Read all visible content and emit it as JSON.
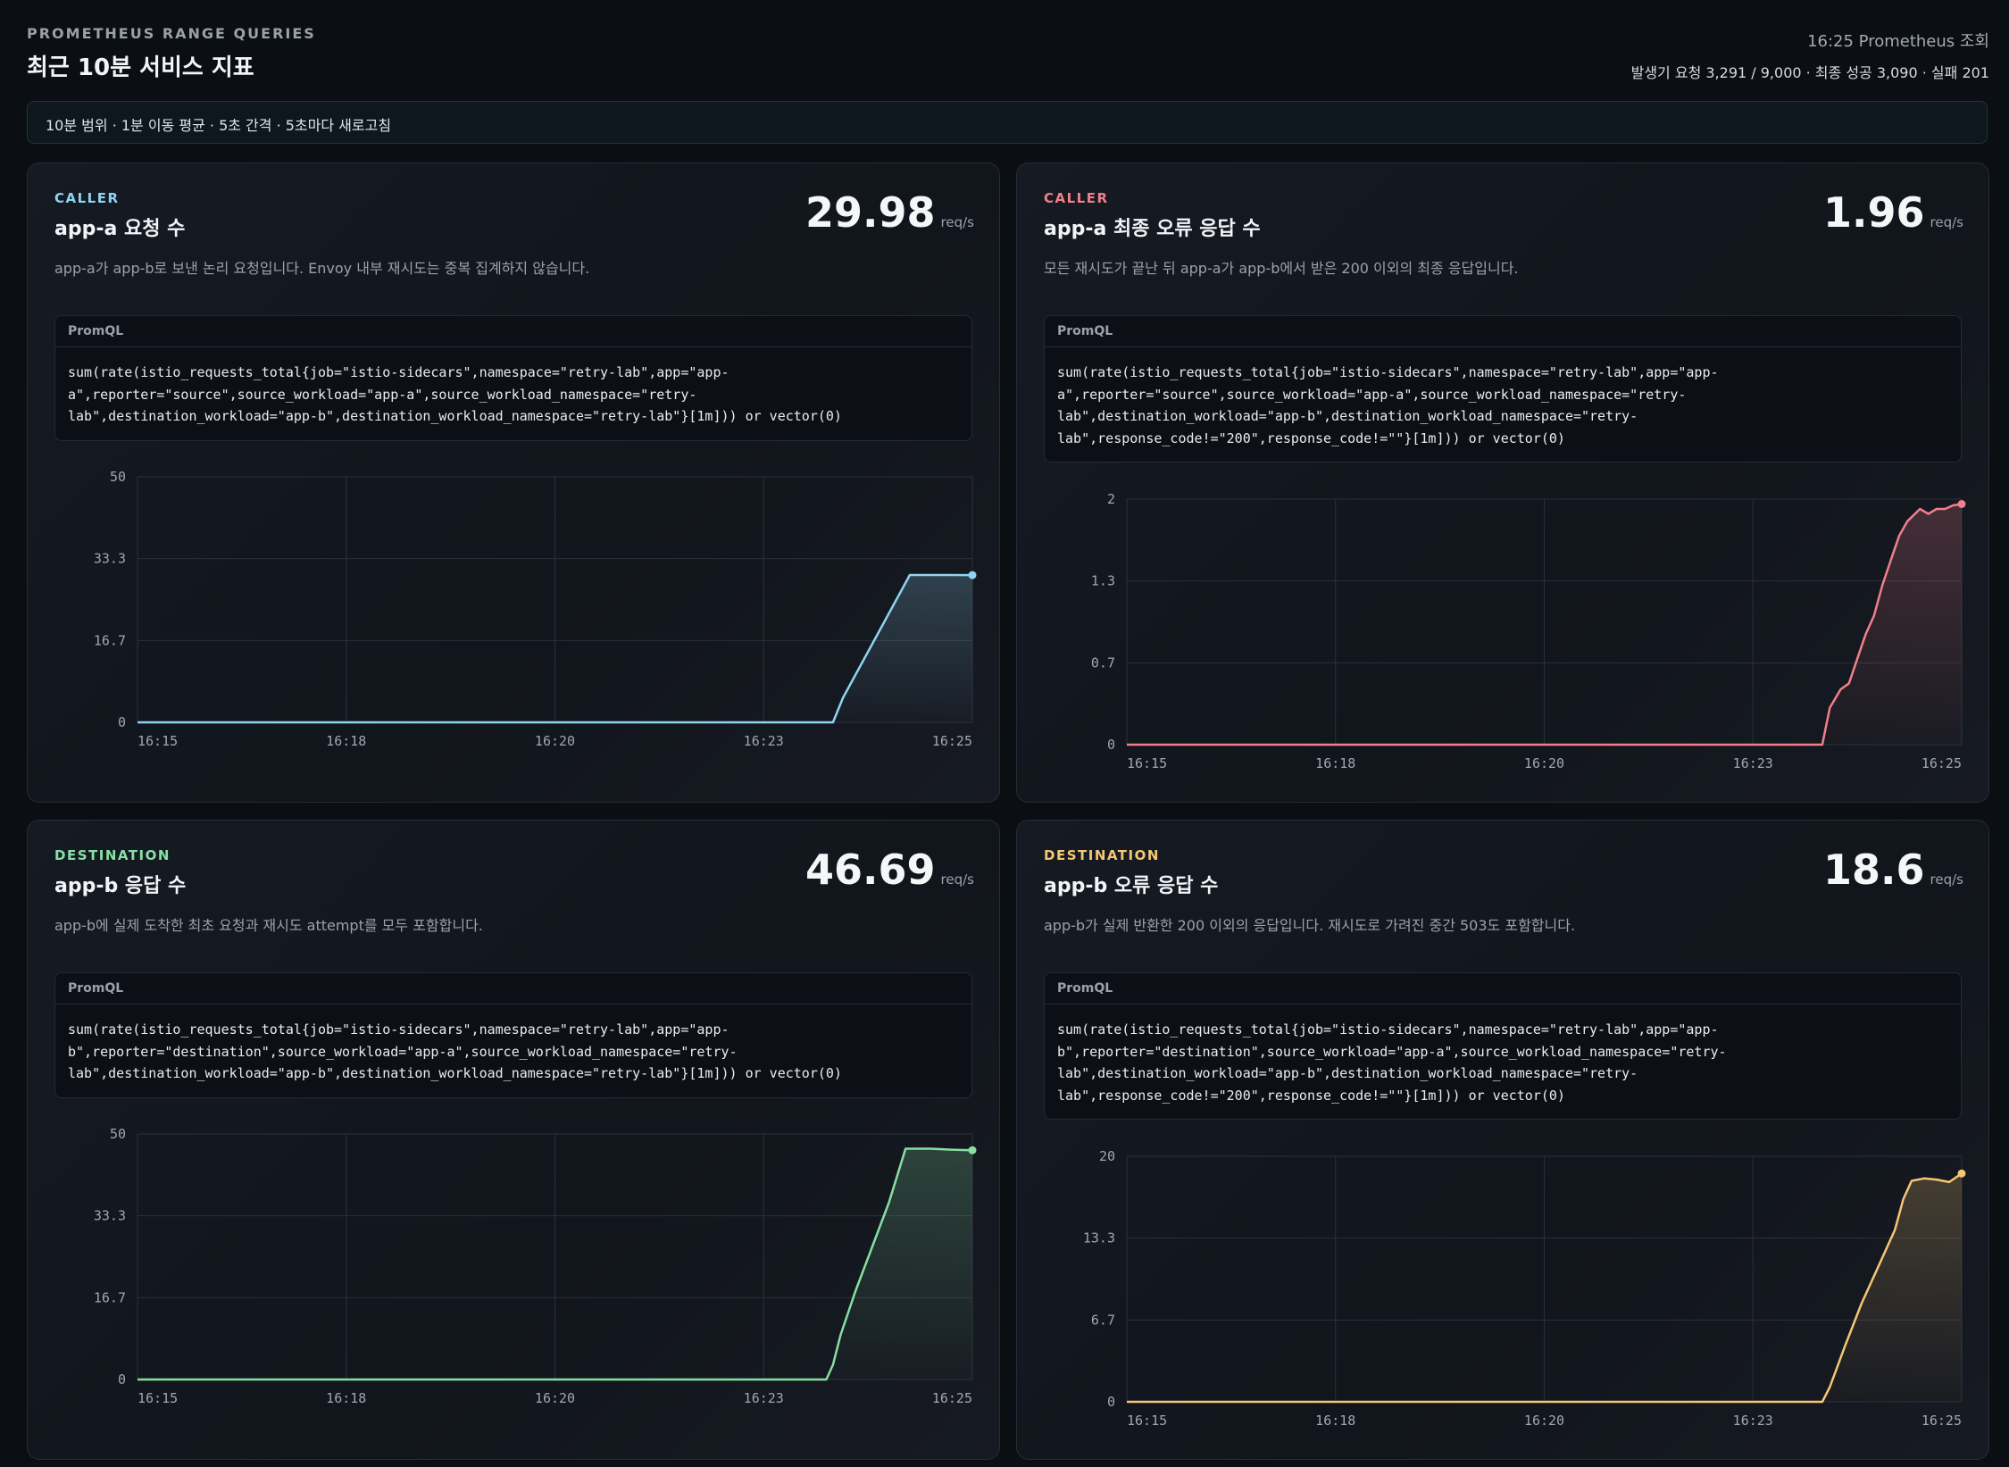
{
  "header": {
    "eyebrow": "PROMETHEUS RANGE QUERIES",
    "title": "최근 10분 서비스 지표",
    "query_time": "16:25 Prometheus 조회",
    "stats": "발생기 요청 3,291 / 9,000 · 최종 성공 3,090 · 실패 201"
  },
  "banner": {
    "text": "10분 범위 · 1분 이동 평균 · 5초 간격 · 5초마다 새로고침"
  },
  "colors": {
    "caller": "#8fd4f0",
    "caller_error": "#f27f8c",
    "destination": "#86e0a3",
    "destination_error": "#f5c673"
  },
  "panels": [
    {
      "tag": "CALLER",
      "title": "app-a 요청 수",
      "description": "app-a가 app-b로 보낸 논리 요청입니다. Envoy 내부 재시도는 중복 집계하지 않습니다.",
      "value": "29.98",
      "unit": "req/s",
      "promql_label": "PromQL",
      "promql": "sum(rate(istio_requests_total{job=\"istio-sidecars\",namespace=\"retry-lab\",app=\"app-\na\",reporter=\"source\",source_workload=\"app-a\",source_workload_namespace=\"retry-\nlab\",destination_workload=\"app-b\",destination_workload_namespace=\"retry-lab\"}[1m])) or vector(0)",
      "color": "#8fd4f0"
    },
    {
      "tag": "CALLER",
      "title": "app-a 최종 오류 응답 수",
      "description": "모든 재시도가 끝난 뒤 app-a가 app-b에서 받은 200 이외의 최종 응답입니다.",
      "value": "1.96",
      "unit": "req/s",
      "promql_label": "PromQL",
      "promql": "sum(rate(istio_requests_total{job=\"istio-sidecars\",namespace=\"retry-lab\",app=\"app-\na\",reporter=\"source\",source_workload=\"app-a\",source_workload_namespace=\"retry-\nlab\",destination_workload=\"app-b\",destination_workload_namespace=\"retry-\nlab\",response_code!=\"200\",response_code!=\"\"}[1m])) or vector(0)",
      "color": "#f27f8c"
    },
    {
      "tag": "DESTINATION",
      "title": "app-b 응답 수",
      "description": "app-b에 실제 도착한 최초 요청과 재시도 attempt를 모두 포함합니다.",
      "value": "46.69",
      "unit": "req/s",
      "promql_label": "PromQL",
      "promql": "sum(rate(istio_requests_total{job=\"istio-sidecars\",namespace=\"retry-lab\",app=\"app-\nb\",reporter=\"destination\",source_workload=\"app-a\",source_workload_namespace=\"retry-\nlab\",destination_workload=\"app-b\",destination_workload_namespace=\"retry-lab\"}[1m])) or vector(0)",
      "color": "#86e0a3"
    },
    {
      "tag": "DESTINATION",
      "title": "app-b 오류 응답 수",
      "description": "app-b가 실제 반환한 200 이외의 응답입니다. 재시도로 가려진 중간 503도 포함합니다.",
      "value": "18.6",
      "unit": "req/s",
      "promql_label": "PromQL",
      "promql": "sum(rate(istio_requests_total{job=\"istio-sidecars\",namespace=\"retry-lab\",app=\"app-\nb\",reporter=\"destination\",source_workload=\"app-a\",source_workload_namespace=\"retry-\nlab\",destination_workload=\"app-b\",destination_workload_namespace=\"retry-\nlab\",response_code!=\"200\",response_code!=\"\"}[1m])) or vector(0)",
      "color": "#f5c673"
    }
  ],
  "chart_data": [
    {
      "type": "area",
      "x_ticks": [
        "16:15",
        "16:18",
        "16:20",
        "16:23",
        "16:25"
      ],
      "y_ticks": [
        "0",
        "16.7",
        "33.3",
        "50"
      ],
      "ylim": [
        0,
        50
      ],
      "x": [
        0,
        8.33,
        8.45,
        9.25,
        9.5,
        9.75,
        10
      ],
      "y": [
        0,
        0,
        5,
        30,
        30,
        30,
        29.98
      ],
      "grid": true
    },
    {
      "type": "area",
      "x_ticks": [
        "16:15",
        "16:18",
        "16:20",
        "16:23",
        "16:25"
      ],
      "y_ticks": [
        "0",
        "0.7",
        "1.3",
        "2"
      ],
      "ylim": [
        0,
        2
      ],
      "x": [
        0,
        8.33,
        8.42,
        8.55,
        8.65,
        8.75,
        8.85,
        8.95,
        9.05,
        9.15,
        9.25,
        9.35,
        9.5,
        9.6,
        9.7,
        9.8,
        9.9,
        10
      ],
      "y": [
        0,
        0,
        0.3,
        0.45,
        0.5,
        0.7,
        0.9,
        1.05,
        1.3,
        1.5,
        1.7,
        1.82,
        1.92,
        1.88,
        1.92,
        1.92,
        1.95,
        1.96
      ],
      "grid": true
    },
    {
      "type": "area",
      "x_ticks": [
        "16:15",
        "16:18",
        "16:20",
        "16:23",
        "16:25"
      ],
      "y_ticks": [
        "0",
        "16.7",
        "33.3",
        "50"
      ],
      "ylim": [
        0,
        50
      ],
      "x": [
        0,
        8.25,
        8.33,
        8.42,
        8.6,
        8.8,
        9.0,
        9.2,
        9.5,
        9.75,
        10
      ],
      "y": [
        0,
        0,
        3,
        9,
        18,
        27,
        36,
        47,
        47,
        46.8,
        46.69
      ],
      "grid": true
    },
    {
      "type": "area",
      "x_ticks": [
        "16:15",
        "16:18",
        "16:20",
        "16:23",
        "16:25"
      ],
      "y_ticks": [
        "0",
        "6.7",
        "13.3",
        "20"
      ],
      "ylim": [
        0,
        20
      ],
      "x": [
        0,
        8.33,
        8.42,
        8.6,
        8.8,
        9.0,
        9.2,
        9.3,
        9.4,
        9.55,
        9.7,
        9.85,
        10
      ],
      "y": [
        0,
        0,
        1.2,
        4.5,
        8,
        11,
        14,
        16.5,
        18,
        18.2,
        18.1,
        17.9,
        18.6
      ],
      "grid": true
    }
  ]
}
